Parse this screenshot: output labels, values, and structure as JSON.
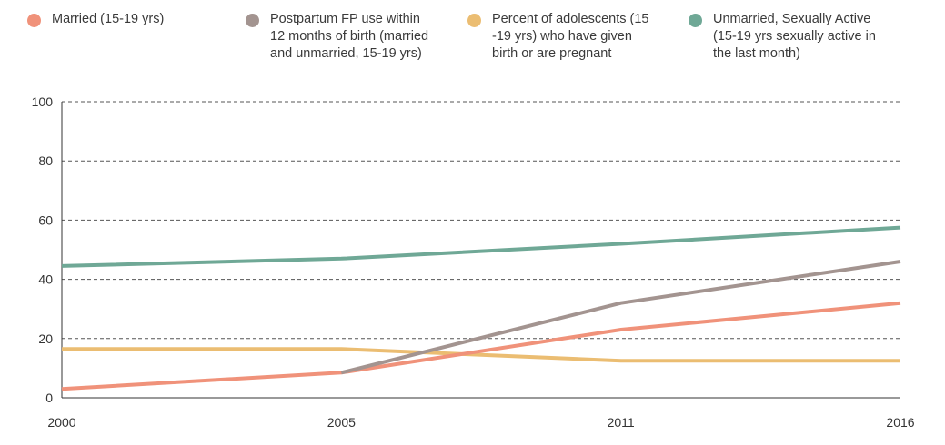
{
  "chart_data": {
    "type": "line",
    "title": "",
    "xlabel": "",
    "ylabel": "",
    "x": [
      "2000",
      "2005",
      "2011",
      "2016"
    ],
    "ylim": [
      0,
      100
    ],
    "yticks": [
      "0",
      "20",
      "40",
      "60",
      "80",
      "100"
    ],
    "grid": true,
    "legend_position": "top",
    "series": [
      {
        "name": "Married (15-19 yrs)",
        "color": "#f0927a",
        "values": [
          3,
          8.5,
          23,
          32
        ]
      },
      {
        "name": "Postpartum FP use within\n12 months of birth (married\nand unmarried, 15-19 yrs)",
        "color": "#a39490",
        "values": [
          null,
          8.5,
          32,
          46
        ]
      },
      {
        "name": "Percent of adolescents (15\n-19 yrs) who have given\nbirth or are pregnant",
        "color": "#ebbd72",
        "values": [
          16.5,
          16.5,
          12.5,
          12.5
        ]
      },
      {
        "name": "Unmarried, Sexually Active\n(15-19 yrs sexually active in\nthe last month)",
        "color": "#6fa896",
        "values": [
          44.5,
          47,
          52,
          57.5
        ]
      }
    ]
  }
}
